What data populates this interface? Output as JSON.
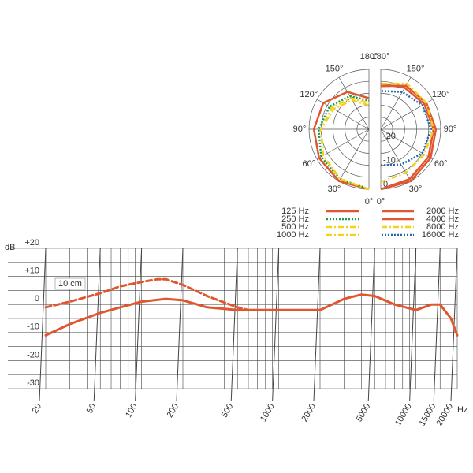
{
  "chart_data": [
    {
      "type": "polar",
      "theta": [
        0,
        30,
        60,
        90,
        120,
        150,
        180
      ],
      "thetaticks": [
        {
          "value": 0,
          "label": "0°"
        },
        {
          "value": 30,
          "label": "30°"
        },
        {
          "value": 60,
          "label": "60°"
        },
        {
          "value": 90,
          "label": "90°"
        },
        {
          "value": 120,
          "label": "120°"
        },
        {
          "value": 150,
          "label": "150°"
        },
        {
          "value": 180,
          "label": "180°"
        }
      ],
      "rlim": [
        -25,
        0
      ],
      "rticks": [
        -20,
        -10,
        0
      ],
      "rgrid": [
        -20,
        -15,
        -10,
        -5,
        0
      ],
      "series": [
        {
          "name": "125 Hz",
          "color": "#e0562f",
          "dash": "solid",
          "side": "left",
          "values": [
            0,
            0,
            -1,
            -2,
            -3,
            -7,
            -12
          ]
        },
        {
          "name": "250 Hz",
          "color": "#1a9850",
          "dash": "dotted",
          "side": "left",
          "values": [
            0,
            -1,
            -2,
            -4,
            -6,
            -9,
            -13
          ]
        },
        {
          "name": "500 Hz",
          "color": "#f2d21b",
          "dash": "dashdot",
          "side": "left",
          "values": [
            0,
            -1,
            -3,
            -5,
            -7,
            -10,
            -14
          ]
        },
        {
          "name": "1000 Hz",
          "color": "#f2d21b",
          "dash": "dashdot",
          "side": "left",
          "values": [
            0,
            -1,
            -3,
            -5,
            -8,
            -11,
            -15
          ]
        },
        {
          "name": "2000 Hz",
          "color": "#e0562f",
          "dash": "solid",
          "side": "right",
          "values": [
            0,
            -1,
            -2,
            -3,
            -4,
            -5,
            -6
          ]
        },
        {
          "name": "4000 Hz",
          "color": "#e0562f",
          "dash": "solid",
          "side": "right",
          "values": [
            0,
            0,
            -1,
            -2,
            -3,
            -4,
            -7
          ]
        },
        {
          "name": "8000 Hz",
          "color": "#f2d21b",
          "dash": "dashdot",
          "side": "right",
          "values": [
            -3,
            -4,
            -4,
            -3,
            -3,
            -3,
            -6
          ]
        },
        {
          "name": "16000 Hz",
          "color": "#2166ac",
          "dash": "dotted",
          "side": "right",
          "values": [
            -10,
            -8,
            -5,
            -4,
            -5,
            -7,
            -9
          ]
        }
      ]
    },
    {
      "type": "line",
      "ylabel": "dB",
      "xlabel": "Hz",
      "xlim": [
        20,
        20000
      ],
      "log_x": true,
      "xticks": [
        20,
        50,
        100,
        200,
        500,
        1000,
        2000,
        5000,
        10000,
        15000,
        20000
      ],
      "xgrid": [
        20,
        30,
        40,
        50,
        60,
        70,
        80,
        90,
        100,
        200,
        300,
        400,
        500,
        600,
        700,
        800,
        900,
        1000,
        2000,
        3000,
        4000,
        5000,
        6000,
        7000,
        8000,
        9000,
        10000,
        15000,
        20000
      ],
      "ylim": [
        -30,
        20
      ],
      "yticks": [
        {
          "value": 20,
          "label": "+20"
        },
        {
          "value": 10,
          "label": "+10"
        },
        0,
        -10,
        -20,
        -30
      ],
      "ygrid": [
        -30,
        -25,
        -20,
        -15,
        -10,
        -5,
        0,
        5,
        10,
        15,
        20
      ],
      "annotation": "10 cm",
      "series": [
        {
          "color": "#e0562f",
          "dash": "solid",
          "x": [
            20,
            30,
            50,
            70,
            100,
            150,
            200,
            300,
            500,
            1000,
            2000,
            3000,
            4000,
            5000,
            7000,
            10000,
            13000,
            15000,
            18000,
            20000
          ],
          "values": [
            -11,
            -7,
            -3,
            -1,
            1,
            2,
            1.5,
            -1,
            -2,
            -2,
            -2,
            2,
            3.5,
            3,
            0,
            -2,
            0,
            0,
            -5,
            -11
          ]
        },
        {
          "color": "#e0562f",
          "dash": "dashed",
          "x": [
            20,
            30,
            50,
            70,
            100,
            130,
            150,
            200,
            300,
            500,
            600
          ],
          "values": [
            -1,
            1,
            4,
            6.5,
            8,
            9,
            9,
            7,
            3,
            -1,
            -2
          ]
        }
      ]
    }
  ]
}
